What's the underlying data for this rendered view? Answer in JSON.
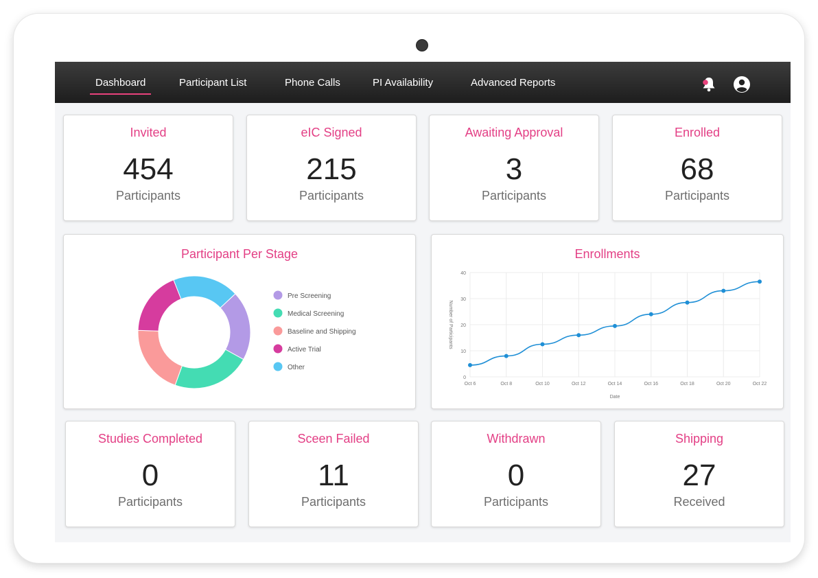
{
  "nav": {
    "items": [
      {
        "label": "Dashboard",
        "active": true
      },
      {
        "label": "Participant List"
      },
      {
        "label": "Phone Calls"
      },
      {
        "label": "PI Availability"
      },
      {
        "label": "Advanced Reports"
      }
    ],
    "notification_icon": "bell-icon",
    "notification_dot_color": "#e8427c",
    "profile_icon": "user-circle-icon"
  },
  "stats_top": [
    {
      "title": "Invited",
      "value": "454",
      "unit": "Participants"
    },
    {
      "title": "eIC Signed",
      "value": "215",
      "unit": "Participants"
    },
    {
      "title": "Awaiting Approval",
      "value": "3",
      "unit": "Participants"
    },
    {
      "title": "Enrolled",
      "value": "68",
      "unit": "Participants"
    }
  ],
  "stats_bottom": [
    {
      "title": "Studies Completed",
      "value": "0",
      "unit": "Participants"
    },
    {
      "title": "Sceen Failed",
      "value": "11",
      "unit": "Participants"
    },
    {
      "title": "Withdrawn",
      "value": "0",
      "unit": "Participants"
    },
    {
      "title": "Shipping",
      "value": "27",
      "unit": "Received"
    }
  ],
  "accent_color": "#e33f85",
  "chart_data": [
    {
      "type": "pie",
      "title": "Participant Per Stage",
      "legend_position": "right",
      "slices": [
        {
          "label": "Pre Screening",
          "value": 20,
          "color": "#b39ae6"
        },
        {
          "label": "Medical Screening",
          "value": 22.5,
          "color": "#44dcb3"
        },
        {
          "label": "Baseline and Shipping",
          "value": 20,
          "color": "#fa9a9a"
        },
        {
          "label": "Active Trial",
          "value": 18.5,
          "color": "#d63c9e"
        },
        {
          "label": "Other",
          "value": 19,
          "color": "#58c7f3"
        }
      ]
    },
    {
      "type": "line",
      "title": "Enrollments",
      "xlabel": "Date",
      "ylabel": "Number of Participants",
      "x": [
        "Oct 6",
        "Oct 8",
        "Oct 10",
        "Oct 12",
        "Oct 14",
        "Oct 16",
        "Oct 18",
        "Oct 20",
        "Oct 22"
      ],
      "series": [
        {
          "color": "#1f8fd6",
          "values": [
            4.5,
            8,
            12.5,
            16,
            19.5,
            24,
            28.5,
            33,
            36.5
          ]
        }
      ],
      "ylim": [
        0,
        40
      ],
      "yticks": [
        0,
        10,
        20,
        30,
        40
      ],
      "grid": true
    }
  ]
}
